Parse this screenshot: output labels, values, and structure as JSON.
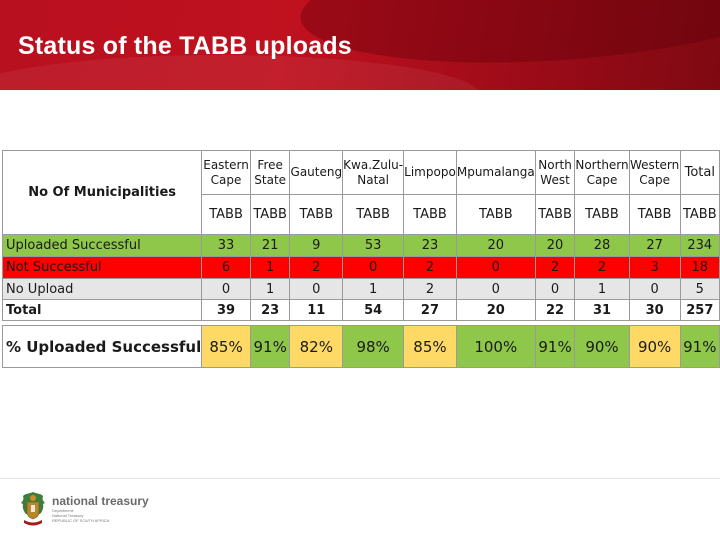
{
  "slide": {
    "title": "Status of the TABB uploads"
  },
  "table": {
    "corner_label": "No Of Municipalities",
    "columns": [
      "Eastern Cape",
      "Free State",
      "Gauteng",
      "Kwa.Zulu-Natal",
      "Limpopo",
      "Mpumalanga",
      "North West",
      "Northern Cape",
      "Western Cape",
      "Total"
    ],
    "sub_label": "TABB",
    "rows": [
      {
        "label": "Uploaded Successful",
        "values": [
          "33",
          "21",
          "9",
          "53",
          "23",
          "20",
          "20",
          "28",
          "27",
          "234"
        ]
      },
      {
        "label": "Not Successful",
        "values": [
          "6",
          "1",
          "2",
          "0",
          "2",
          "0",
          "2",
          "2",
          "3",
          "18"
        ]
      },
      {
        "label": "No Upload",
        "values": [
          "0",
          "1",
          "0",
          "1",
          "2",
          "0",
          "0",
          "1",
          "0",
          "5"
        ]
      },
      {
        "label": "Total",
        "values": [
          "39",
          "23",
          "11",
          "54",
          "27",
          "20",
          "22",
          "31",
          "30",
          "257"
        ]
      }
    ],
    "percent_row": {
      "label": "% Uploaded Successful",
      "values": [
        "85%",
        "91%",
        "82%",
        "98%",
        "85%",
        "100%",
        "91%",
        "90%",
        "90%",
        "91%"
      ],
      "levels": [
        "yellow",
        "green",
        "yellow",
        "green",
        "yellow",
        "green",
        "green",
        "green",
        "yellow",
        "green"
      ]
    }
  },
  "footer": {
    "brand": "national treasury",
    "line1": "Department:",
    "line2": "National Treasury",
    "line3": "REPUBLIC OF SOUTH AFRICA",
    "logo_icon": "coat-of-arms-icon"
  },
  "colors": {
    "banner_red": "#c0111f",
    "green": "#8fc74b",
    "yellow": "#ffd966",
    "red": "#ff0000",
    "grey": "#e6e6e6"
  }
}
